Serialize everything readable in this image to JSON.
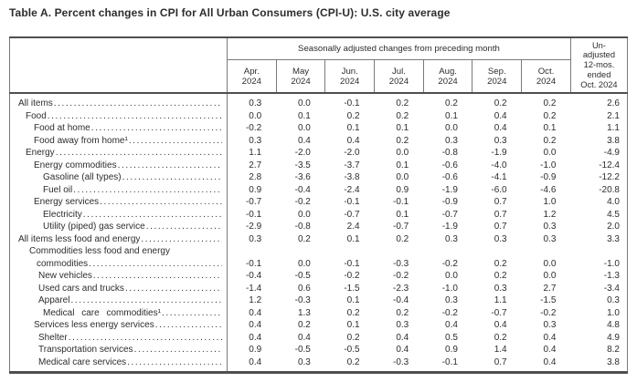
{
  "title": "Table A. Percent changes in CPI for All Urban Consumers (CPI-U): U.S. city average",
  "table": {
    "group_header": "Seasonally adjusted changes from preceding month",
    "unadjusted_header": "Un-\nadjusted\n12-mos.\nended\nOct. 2024",
    "month_headers": [
      "Apr.\n2024",
      "May\n2024",
      "Jun.\n2024",
      "Jul.\n2024",
      "Aug.\n2024",
      "Sep.\n2024",
      "Oct.\n2024"
    ],
    "rows": [
      {
        "label": "All items",
        "indent": 0,
        "values": [
          "0.3",
          "0.0",
          "-0.1",
          "0.2",
          "0.2",
          "0.2",
          "0.2"
        ],
        "annual": "2.6"
      },
      {
        "label": "Food",
        "indent": 1,
        "values": [
          "0.0",
          "0.1",
          "0.2",
          "0.2",
          "0.1",
          "0.4",
          "0.2"
        ],
        "annual": "2.1"
      },
      {
        "label": "Food at home",
        "indent": 3,
        "values": [
          "-0.2",
          "0.0",
          "0.1",
          "0.1",
          "0.0",
          "0.4",
          "0.1"
        ],
        "annual": "1.1"
      },
      {
        "label": "Food away from home¹",
        "indent": 3,
        "values": [
          "0.3",
          "0.4",
          "0.4",
          "0.2",
          "0.3",
          "0.3",
          "0.2"
        ],
        "annual": "3.8"
      },
      {
        "label": "Energy",
        "indent": 1,
        "values": [
          "1.1",
          "-2.0",
          "-2.0",
          "0.0",
          "-0.8",
          "-1.9",
          "0.0"
        ],
        "annual": "-4.9"
      },
      {
        "label": "Energy commodities",
        "indent": 3,
        "values": [
          "2.7",
          "-3.5",
          "-3.7",
          "0.1",
          "-0.6",
          "-4.0",
          "-1.0"
        ],
        "annual": "-12.4"
      },
      {
        "label": "Gasoline (all types)",
        "indent": 5,
        "values": [
          "2.8",
          "-3.6",
          "-3.8",
          "0.0",
          "-0.6",
          "-4.1",
          "-0.9"
        ],
        "annual": "-12.2"
      },
      {
        "label": "Fuel oil",
        "indent": 5,
        "values": [
          "0.9",
          "-0.4",
          "-2.4",
          "0.9",
          "-1.9",
          "-6.0",
          "-4.6"
        ],
        "annual": "-20.8"
      },
      {
        "label": "Energy services",
        "indent": 3,
        "values": [
          "-0.7",
          "-0.2",
          "-0.1",
          "-0.1",
          "-0.9",
          "0.7",
          "1.0"
        ],
        "annual": "4.0"
      },
      {
        "label": "Electricity",
        "indent": 5,
        "values": [
          "-0.1",
          "0.0",
          "-0.7",
          "0.1",
          "-0.7",
          "0.7",
          "1.2"
        ],
        "annual": "4.5"
      },
      {
        "label": "Utility (piped) gas service",
        "indent": 5,
        "values": [
          "-2.9",
          "-0.8",
          "2.4",
          "-0.7",
          "-1.9",
          "0.7",
          "0.3"
        ],
        "annual": "2.0"
      },
      {
        "label": "All items less food and energy",
        "indent": 0,
        "values": [
          "0.3",
          "0.2",
          "0.1",
          "0.2",
          "0.3",
          "0.3",
          "0.3"
        ],
        "annual": "3.3"
      },
      {
        "label_lines": [
          "Commodities less food and energy",
          "commodities"
        ],
        "indent": 2,
        "values": [
          "-0.1",
          "0.0",
          "-0.1",
          "-0.3",
          "-0.2",
          "0.2",
          "0.0"
        ],
        "annual": "-1.0"
      },
      {
        "label": "New vehicles",
        "indent": 4,
        "values": [
          "-0.4",
          "-0.5",
          "-0.2",
          "-0.2",
          "0.0",
          "0.2",
          "0.0"
        ],
        "annual": "-1.3"
      },
      {
        "label": "Used cars and trucks",
        "indent": 4,
        "values": [
          "-1.4",
          "0.6",
          "-1.5",
          "-2.3",
          "-1.0",
          "0.3",
          "2.7"
        ],
        "annual": "-3.4"
      },
      {
        "label": "Apparel",
        "indent": 4,
        "values": [
          "1.2",
          "-0.3",
          "0.1",
          "-0.4",
          "0.3",
          "1.1",
          "-1.5"
        ],
        "annual": "0.3"
      },
      {
        "label": "Medical care commodities¹",
        "indent": 5,
        "wide": true,
        "values": [
          "0.4",
          "1.3",
          "0.2",
          "0.2",
          "-0.2",
          "-0.7",
          "-0.2"
        ],
        "annual": "1.0"
      },
      {
        "label": "Services less energy services",
        "indent": 3,
        "values": [
          "0.4",
          "0.2",
          "0.1",
          "0.3",
          "0.4",
          "0.4",
          "0.3"
        ],
        "annual": "4.8"
      },
      {
        "label": "Shelter",
        "indent": 4,
        "values": [
          "0.4",
          "0.4",
          "0.2",
          "0.4",
          "0.5",
          "0.2",
          "0.4"
        ],
        "annual": "4.9"
      },
      {
        "label": "Transportation services",
        "indent": 4,
        "values": [
          "0.9",
          "-0.5",
          "-0.5",
          "0.4",
          "0.9",
          "1.4",
          "0.4"
        ],
        "annual": "8.2"
      },
      {
        "label": "Medical care services",
        "indent": 4,
        "values": [
          "0.4",
          "0.3",
          "0.2",
          "-0.3",
          "-0.1",
          "0.7",
          "0.4"
        ],
        "annual": "3.8"
      }
    ]
  }
}
